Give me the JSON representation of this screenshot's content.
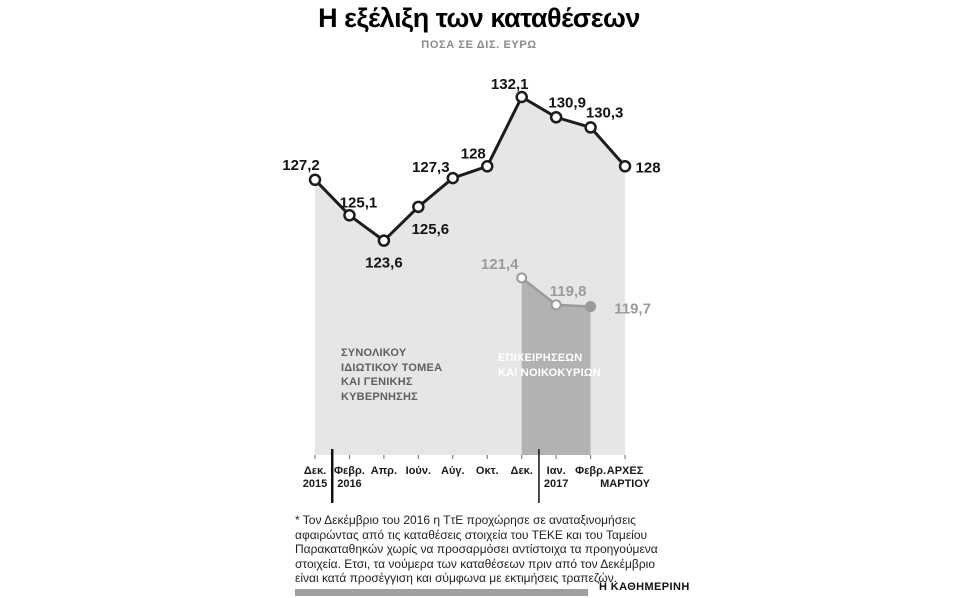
{
  "header": {
    "title": "Η εξέλιξη των καταθέσεων",
    "subtitle": "ΠΟΣΑ ΣΕ ΔΙΣ. ΕΥΡΩ"
  },
  "chart_data": {
    "type": "area",
    "title": "Η εξέλιξη των καταθέσεων",
    "subtitle": "ΠΟΣΑ ΣΕ ΔΙΣ. ΕΥΡΩ",
    "grid": false,
    "ylim": [
      118,
      134
    ],
    "legend_position": "inside-area",
    "categories": [
      [
        "Δεκ.",
        "2015"
      ],
      [
        "Φεβρ.",
        "2016"
      ],
      [
        "Απρ."
      ],
      [
        "Ιούν."
      ],
      [
        "Αύγ."
      ],
      [
        "Οκτ."
      ],
      [
        "Δεκ."
      ],
      [
        "Ιαν.",
        "2017"
      ],
      [
        "Φεβρ."
      ],
      [
        "ΑΡΧΕΣ",
        "ΜΑΡΤΙΟΥ"
      ]
    ],
    "series": [
      {
        "name": "ΣΥΝΟΛΙΚΟΥ ΙΔΙΩΤΙΚΟΥ ΤΟΜΕΑ ΚΑΙ ΓΕΝΙΚΗΣ ΚΥΒΕΡΝΗΣΗΣ",
        "label_lines": [
          "ΣΥΝΟΛΙΚΟΥ",
          "ΙΔΙΩΤΙΚΟΥ ΤΟΜΕΑ",
          "ΚΑΙ ΓΕΝΙΚΗΣ",
          "ΚΥΒΕΡΝΗΣΗΣ"
        ],
        "start_index": 0,
        "values": [
          127.2,
          125.1,
          123.6,
          125.6,
          127.3,
          128,
          132.1,
          130.9,
          130.3,
          128
        ],
        "labels": [
          "127,2",
          "125,1",
          "123,6",
          "125,6",
          "127,3",
          "128",
          "132,1",
          "130,9",
          "130,3",
          "128"
        ],
        "line_color": "#1c1c1c",
        "area_color": "#e6e6e6"
      },
      {
        "name": "ΕΠΙΧΕΙΡΗΣΕΩΝ ΚΑΙ ΝΟΙΚΟΚΥΡΙΩΝ",
        "label_lines": [
          "ΕΠΙΧΕΙΡΗΣΕΩΝ",
          "ΚΑΙ ΝΟΙΚΟΚΥΡΙΩΝ"
        ],
        "start_index": 6,
        "values": [
          121.4,
          119.8,
          119.7
        ],
        "labels": [
          "121,4",
          "119,8",
          "119,7"
        ],
        "line_color": "#9b9b9b",
        "area_color": "#b2b2b2"
      }
    ]
  },
  "footnote": {
    "text": "* Τον Δεκέμβριο του 2016 η ΤτΕ προχώρησε σε αναταξινομήσεις αφαιρώντας από τις καταθέσεις στοιχεία του ΤΕΚΕ και του Ταμείου Παρακαταθηκών χωρίς να προσαρμόσει αντίστοιχα τα προηγούμενα στοιχεία. Ετσι, τα νούμερα των καταθέσεων πριν από τον Δεκέμβριο είναι κατά προσέγγιση και σύμφωνα με εκτιμήσεις τραπεζών."
  },
  "branding": {
    "source": "Η ΚΑΘΗΜΕΡΙΝΗ"
  }
}
